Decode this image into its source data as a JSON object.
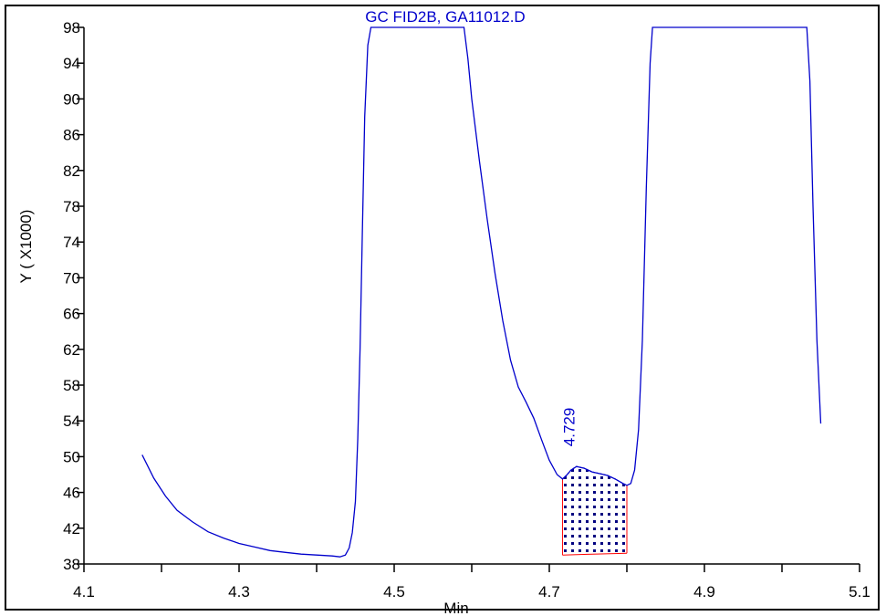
{
  "chart_data": {
    "type": "line",
    "title": "GC FID2B, GA11012.D",
    "xlabel": "Min",
    "ylabel": "Y ( X1000)",
    "xlim": [
      4.1,
      5.1
    ],
    "ylim": [
      38,
      98
    ],
    "x_ticks": [
      "4.1",
      "4.3",
      "4.5",
      "4.7",
      "4.9",
      "5.1"
    ],
    "x_tick_values": [
      4.1,
      4.3,
      4.5,
      4.7,
      4.9,
      5.1
    ],
    "x_minor_tick_values": [
      4.2,
      4.4,
      4.6,
      4.8,
      5.0
    ],
    "y_ticks": [
      "38",
      "42",
      "46",
      "50",
      "54",
      "58",
      "62",
      "66",
      "70",
      "74",
      "78",
      "82",
      "86",
      "90",
      "94",
      "98"
    ],
    "y_tick_values": [
      38,
      42,
      46,
      50,
      54,
      58,
      62,
      66,
      70,
      74,
      78,
      82,
      86,
      90,
      94,
      98
    ],
    "grid": false,
    "series": [
      {
        "color": "#0000cc",
        "points": [
          [
            4.175,
            50.2
          ],
          [
            4.19,
            47.6
          ],
          [
            4.205,
            45.6
          ],
          [
            4.22,
            44.0
          ],
          [
            4.24,
            42.7
          ],
          [
            4.26,
            41.6
          ],
          [
            4.28,
            40.9
          ],
          [
            4.3,
            40.3
          ],
          [
            4.32,
            39.9
          ],
          [
            4.34,
            39.5
          ],
          [
            4.36,
            39.3
          ],
          [
            4.38,
            39.1
          ],
          [
            4.4,
            39.0
          ],
          [
            4.42,
            38.9
          ],
          [
            4.43,
            38.8
          ],
          [
            4.437,
            39.0
          ],
          [
            4.442,
            39.8
          ],
          [
            4.446,
            41.5
          ],
          [
            4.45,
            45.0
          ],
          [
            4.453,
            52.0
          ],
          [
            4.456,
            62.0
          ],
          [
            4.459,
            75.0
          ],
          [
            4.462,
            88.0
          ],
          [
            4.466,
            96.0
          ],
          [
            4.47,
            98.0
          ],
          [
            4.59,
            98.0
          ],
          [
            4.595,
            94.5
          ],
          [
            4.6,
            90.0
          ],
          [
            4.61,
            83.0
          ],
          [
            4.62,
            76.5
          ],
          [
            4.63,
            70.5
          ],
          [
            4.64,
            65.2
          ],
          [
            4.65,
            60.8
          ],
          [
            4.66,
            57.8
          ],
          [
            4.67,
            56.1
          ],
          [
            4.68,
            54.3
          ],
          [
            4.69,
            51.9
          ],
          [
            4.7,
            49.6
          ],
          [
            4.71,
            48.0
          ],
          [
            4.717,
            47.5
          ],
          [
            4.722,
            47.9
          ],
          [
            4.728,
            48.5
          ],
          [
            4.735,
            48.9
          ],
          [
            4.745,
            48.7
          ],
          [
            4.755,
            48.3
          ],
          [
            4.765,
            48.1
          ],
          [
            4.775,
            47.9
          ],
          [
            4.785,
            47.5
          ],
          [
            4.795,
            47.0
          ],
          [
            4.8,
            46.8
          ],
          [
            4.805,
            47.0
          ],
          [
            4.81,
            48.5
          ],
          [
            4.815,
            53.0
          ],
          [
            4.82,
            63.0
          ],
          [
            4.825,
            80.0
          ],
          [
            4.83,
            94.0
          ],
          [
            4.833,
            98.0
          ],
          [
            5.032,
            98.0
          ],
          [
            5.036,
            92.0
          ],
          [
            5.04,
            78.0
          ],
          [
            5.045,
            63.0
          ],
          [
            5.05,
            53.7
          ]
        ]
      }
    ],
    "peak": {
      "label": "4.729",
      "x_start": 4.717,
      "x_end": 4.8,
      "baseline_start": 39.0,
      "baseline_end": 39.2,
      "fill_color": "#000080",
      "outline_color": "#ff0000"
    }
  }
}
